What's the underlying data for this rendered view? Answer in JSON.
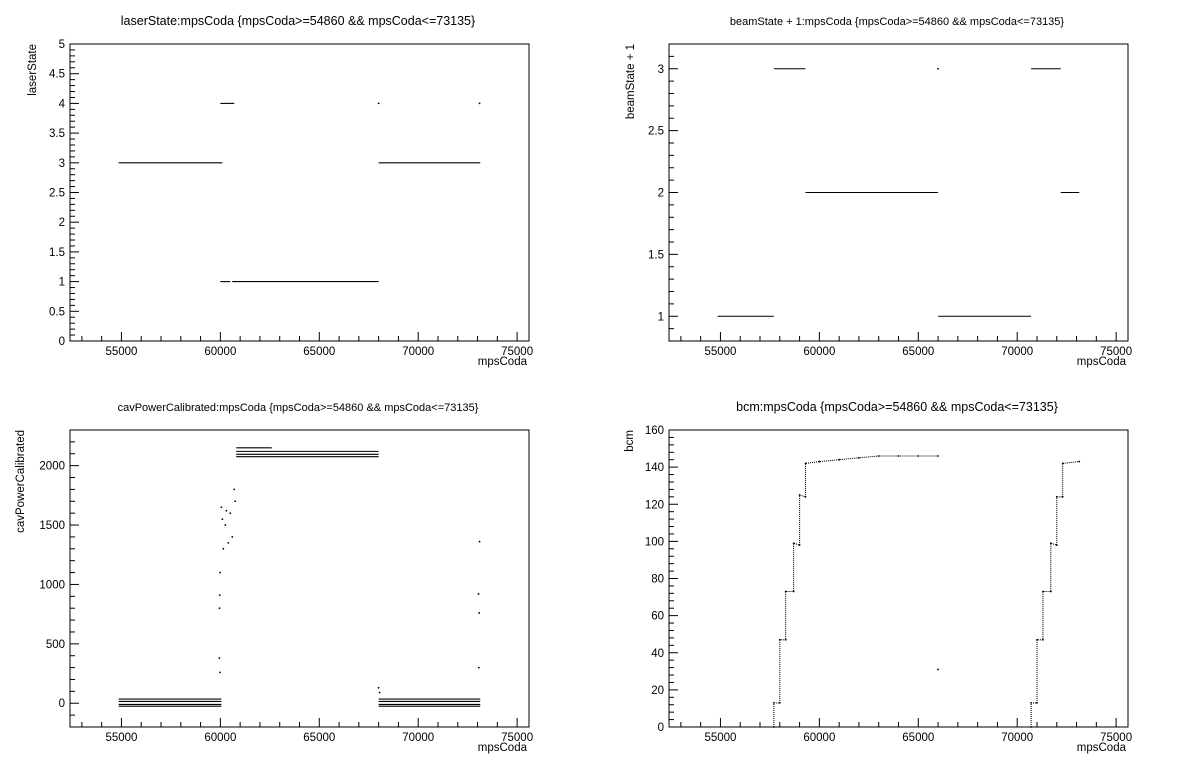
{
  "chart_data": [
    {
      "type": "scatter",
      "title": "laserState:mpsCoda {mpsCoda>=54860 && mpsCoda<=73135}",
      "xlabel": "mpsCoda",
      "ylabel": "laserState",
      "xlim": [
        52400,
        75600
      ],
      "ylim": [
        0,
        5
      ],
      "xticks": [
        55000,
        60000,
        65000,
        70000,
        75000
      ],
      "yticks": [
        0,
        0.5,
        1,
        1.5,
        2,
        2.5,
        3,
        3.5,
        4,
        4.5,
        5
      ],
      "segments": [
        {
          "x": [
            54860,
            60100
          ],
          "y": 3
        },
        {
          "x": [
            60000,
            60700
          ],
          "y": 4
        },
        {
          "x": [
            60000,
            60500
          ],
          "y": 1
        },
        {
          "x": [
            60600,
            68000
          ],
          "y": 1
        },
        {
          "x": [
            68000,
            73135
          ],
          "y": 3
        }
      ],
      "points": [
        {
          "x": 68000,
          "y": 4
        },
        {
          "x": 73100,
          "y": 4
        }
      ]
    },
    {
      "type": "scatter",
      "title": "beamState + 1:mpsCoda {mpsCoda>=54860 && mpsCoda<=73135}",
      "xlabel": "mpsCoda",
      "ylabel": "beamState + 1",
      "xlim": [
        52400,
        75600
      ],
      "ylim": [
        0.8,
        3.2
      ],
      "xticks": [
        55000,
        60000,
        65000,
        70000,
        75000
      ],
      "yticks": [
        1,
        1.5,
        2,
        2.5,
        3
      ],
      "segments": [
        {
          "x": [
            54860,
            57700
          ],
          "y": 1
        },
        {
          "x": [
            57700,
            59300
          ],
          "y": 3
        },
        {
          "x": [
            59300,
            66000
          ],
          "y": 2
        },
        {
          "x": [
            66000,
            70700
          ],
          "y": 1
        },
        {
          "x": [
            70700,
            72200
          ],
          "y": 3
        },
        {
          "x": [
            72200,
            73135
          ],
          "y": 2
        }
      ],
      "points": [
        {
          "x": 66000,
          "y": 3
        }
      ]
    },
    {
      "type": "scatter",
      "title": "cavPowerCalibrated:mpsCoda {mpsCoda>=54860 && mpsCoda<=73135}",
      "xlabel": "mpsCoda",
      "ylabel": "cavPowerCalibrated",
      "xlim": [
        52400,
        75600
      ],
      "ylim": [
        -200,
        2300
      ],
      "xticks": [
        55000,
        60000,
        65000,
        70000,
        75000
      ],
      "yticks": [
        0,
        500,
        1000,
        1500,
        2000
      ],
      "segments": [
        {
          "x": [
            54860,
            60050
          ],
          "y": 35
        },
        {
          "x": [
            54860,
            60050
          ],
          "y": 15
        },
        {
          "x": [
            54860,
            60050
          ],
          "y": -10
        },
        {
          "x": [
            54860,
            60050
          ],
          "y": -25
        },
        {
          "x": [
            60800,
            62600
          ],
          "y": 2150
        },
        {
          "x": [
            60800,
            68000
          ],
          "y": 2120
        },
        {
          "x": [
            60800,
            68000
          ],
          "y": 2095
        },
        {
          "x": [
            60800,
            68000
          ],
          "y": 2075
        },
        {
          "x": [
            68000,
            73135
          ],
          "y": 35
        },
        {
          "x": [
            68000,
            73135
          ],
          "y": 15
        },
        {
          "x": [
            68000,
            73135
          ],
          "y": -10
        },
        {
          "x": [
            68000,
            73135
          ],
          "y": -25
        }
      ],
      "points": [
        {
          "x": 59950,
          "y": 380
        },
        {
          "x": 59980,
          "y": 260
        },
        {
          "x": 59960,
          "y": 800
        },
        {
          "x": 59970,
          "y": 910
        },
        {
          "x": 59990,
          "y": 1100
        },
        {
          "x": 60050,
          "y": 1650
        },
        {
          "x": 60100,
          "y": 1550
        },
        {
          "x": 60150,
          "y": 1300
        },
        {
          "x": 60250,
          "y": 1500
        },
        {
          "x": 60300,
          "y": 1620
        },
        {
          "x": 60400,
          "y": 1350
        },
        {
          "x": 60500,
          "y": 1600
        },
        {
          "x": 60600,
          "y": 1400
        },
        {
          "x": 60700,
          "y": 1800
        },
        {
          "x": 60750,
          "y": 1700
        },
        {
          "x": 68000,
          "y": 130
        },
        {
          "x": 68050,
          "y": 90
        },
        {
          "x": 73100,
          "y": 1360
        },
        {
          "x": 73050,
          "y": 920
        },
        {
          "x": 73080,
          "y": 760
        },
        {
          "x": 73070,
          "y": 300
        }
      ]
    },
    {
      "type": "scatter",
      "title": "bcm:mpsCoda {mpsCoda>=54860 && mpsCoda<=73135}",
      "xlabel": "mpsCoda",
      "ylabel": "bcm",
      "xlim": [
        52400,
        75600
      ],
      "ylim": [
        0,
        160
      ],
      "xticks": [
        55000,
        60000,
        65000,
        70000,
        75000
      ],
      "yticks": [
        0,
        20,
        40,
        60,
        80,
        100,
        120,
        140,
        160
      ],
      "points": [
        {
          "x": 57700,
          "y": 0
        },
        {
          "x": 57700,
          "y": 13
        },
        {
          "x": 58000,
          "y": 13
        },
        {
          "x": 58000,
          "y": 47
        },
        {
          "x": 58300,
          "y": 47
        },
        {
          "x": 58300,
          "y": 73
        },
        {
          "x": 58700,
          "y": 73
        },
        {
          "x": 58700,
          "y": 99
        },
        {
          "x": 59000,
          "y": 98
        },
        {
          "x": 59000,
          "y": 125
        },
        {
          "x": 59300,
          "y": 124
        },
        {
          "x": 59300,
          "y": 142
        },
        {
          "x": 60000,
          "y": 143
        },
        {
          "x": 61000,
          "y": 144
        },
        {
          "x": 62000,
          "y": 145
        },
        {
          "x": 63000,
          "y": 146
        },
        {
          "x": 64000,
          "y": 146
        },
        {
          "x": 65000,
          "y": 146
        },
        {
          "x": 66000,
          "y": 146
        },
        {
          "x": 66000,
          "y": 31
        },
        {
          "x": 70700,
          "y": 0
        },
        {
          "x": 70700,
          "y": 13
        },
        {
          "x": 71000,
          "y": 13
        },
        {
          "x": 71000,
          "y": 47
        },
        {
          "x": 71300,
          "y": 47
        },
        {
          "x": 71300,
          "y": 73
        },
        {
          "x": 71700,
          "y": 73
        },
        {
          "x": 71700,
          "y": 99
        },
        {
          "x": 72000,
          "y": 98
        },
        {
          "x": 72000,
          "y": 124
        },
        {
          "x": 72300,
          "y": 124
        },
        {
          "x": 72300,
          "y": 142
        },
        {
          "x": 73135,
          "y": 143
        }
      ]
    }
  ]
}
